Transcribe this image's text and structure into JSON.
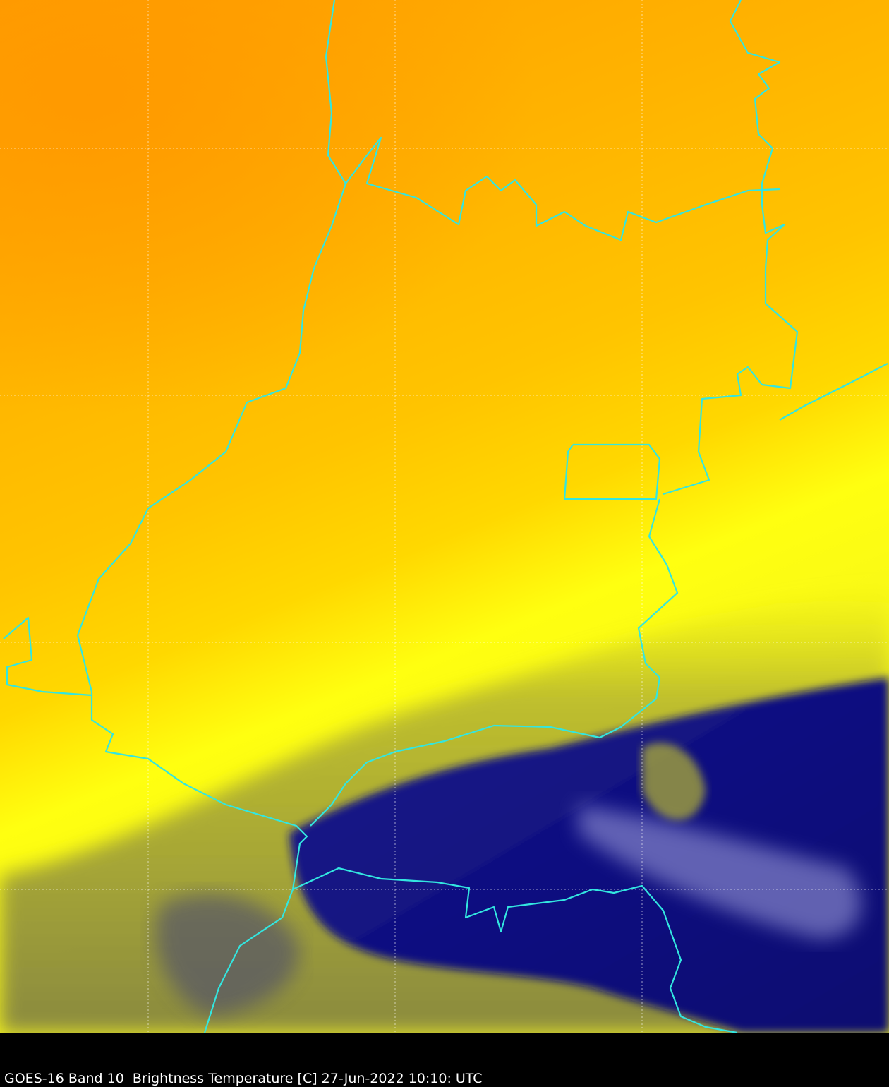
{
  "caption": "GOES-16 Band 10  Brightness Temperature [C] 27-Jun-2022 10:10: UTC"
}
